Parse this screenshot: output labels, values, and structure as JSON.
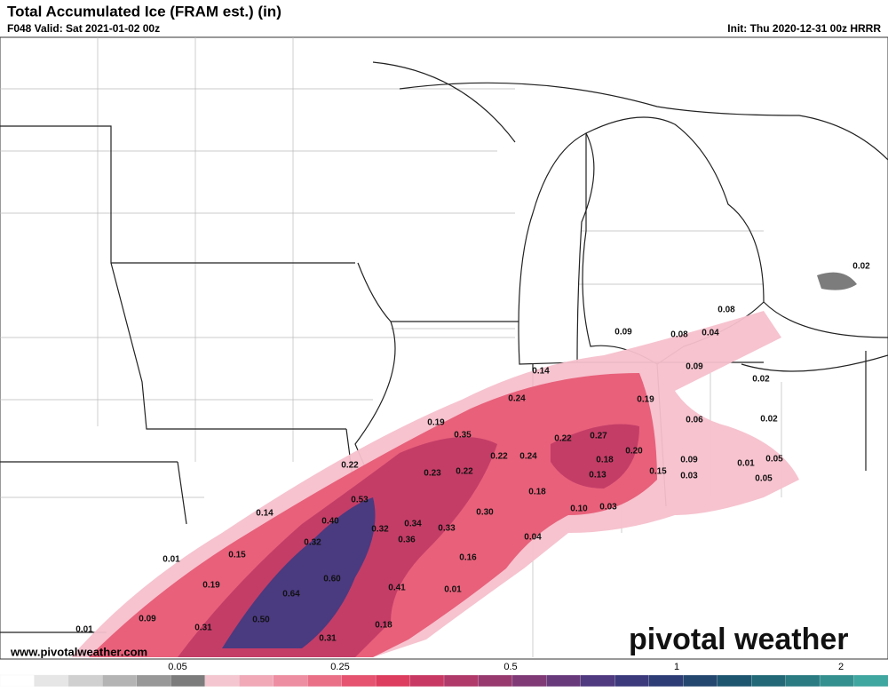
{
  "header": {
    "title": "Total Accumulated Ice (FRAM est.) (in)",
    "valid": "F048 Valid: Sat 2021-01-02 00z",
    "init": "Init: Thu 2020-12-31 00z HRRR"
  },
  "map": {
    "labels": [
      "0.02",
      "0.08",
      "0.09",
      "0.08",
      "0.04",
      "0.14",
      "0.09",
      "0.02",
      "0.24",
      "0.19",
      "0.19",
      "0.06",
      "0.02",
      "0.35",
      "0.22",
      "0.27",
      "0.20",
      "0.22",
      "0.24",
      "0.18",
      "0.09",
      "0.01",
      "0.05",
      "0.22",
      "0.23",
      "0.22",
      "0.13",
      "0.15",
      "0.03",
      "0.05",
      "0.18",
      "0.53",
      "0.10",
      "0.03",
      "0.30",
      "0.14",
      "0.40",
      "0.34",
      "0.32",
      "0.33",
      "0.36",
      "0.04",
      "0.32",
      "0.15",
      "0.01",
      "0.16",
      "0.60",
      "0.19",
      "0.41",
      "0.01",
      "0.64",
      "0.09",
      "0.50",
      "0.18",
      "0.01",
      "0.31",
      "0.31"
    ]
  },
  "footer": {
    "website": "www.pivotalweather.com",
    "logo": "pivotal weather"
  },
  "colorbar": {
    "ticks": [
      0.05,
      0.25,
      0.5,
      1,
      2
    ],
    "colors": [
      "#ffffff",
      "#e6e6e6",
      "#d0d0d0",
      "#b4b4b4",
      "#989898",
      "#7c7c7c",
      "#f4c6d0",
      "#f1a9b8",
      "#ee8ea2",
      "#ea7088",
      "#e55370",
      "#dd3d5f",
      "#c83a63",
      "#b03a6a",
      "#983a70",
      "#803a76",
      "#683a7c",
      "#503a80",
      "#3c3a7c",
      "#2e3d76",
      "#24476f",
      "#1e5670",
      "#226877",
      "#2a7b82",
      "#34908e",
      "#40a6a0"
    ]
  }
}
